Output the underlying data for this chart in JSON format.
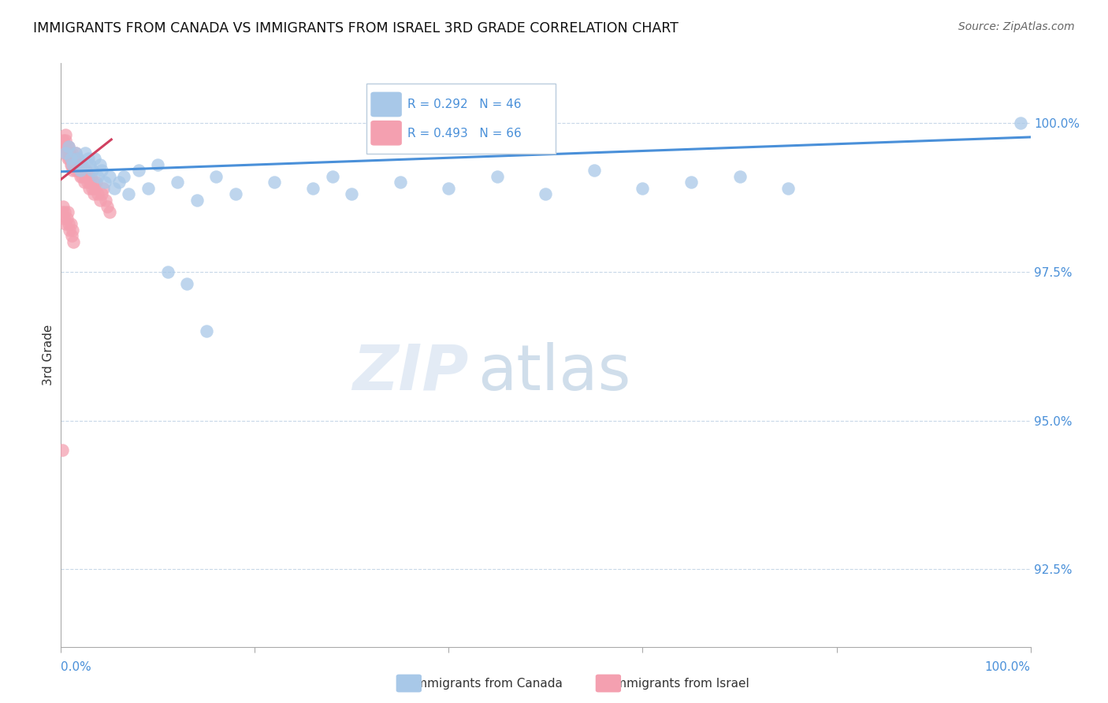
{
  "title": "IMMIGRANTS FROM CANADA VS IMMIGRANTS FROM ISRAEL 3RD GRADE CORRELATION CHART",
  "source": "Source: ZipAtlas.com",
  "ylabel": "3rd Grade",
  "yticks": [
    92.5,
    95.0,
    97.5,
    100.0
  ],
  "ytick_labels": [
    "92.5%",
    "95.0%",
    "97.5%",
    "100.0%"
  ],
  "xlim": [
    0.0,
    1.0
  ],
  "ylim": [
    91.2,
    101.0
  ],
  "legend_r_canada": "R = 0.292",
  "legend_n_canada": "N = 46",
  "legend_r_israel": "R = 0.493",
  "legend_n_israel": "N = 66",
  "legend_label_canada": "Immigrants from Canada",
  "legend_label_israel": "Immigrants from Israel",
  "color_canada": "#a8c8e8",
  "color_israel": "#f4a0b0",
  "color_trendline_canada": "#4a90d9",
  "color_trendline_israel": "#d04060",
  "watermark_zip": "ZIP",
  "watermark_atlas": "atlas",
  "canada_x": [
    0.005,
    0.008,
    0.01,
    0.012,
    0.015,
    0.018,
    0.02,
    0.022,
    0.025,
    0.028,
    0.03,
    0.032,
    0.035,
    0.038,
    0.04,
    0.042,
    0.045,
    0.05,
    0.055,
    0.06,
    0.065,
    0.07,
    0.08,
    0.09,
    0.1,
    0.12,
    0.14,
    0.16,
    0.18,
    0.22,
    0.26,
    0.28,
    0.3,
    0.35,
    0.4,
    0.45,
    0.5,
    0.55,
    0.6,
    0.65,
    0.7,
    0.75,
    0.99,
    0.11,
    0.13,
    0.15
  ],
  "canada_y": [
    99.5,
    99.6,
    99.4,
    99.3,
    99.5,
    99.4,
    99.2,
    99.3,
    99.5,
    99.4,
    99.3,
    99.2,
    99.4,
    99.1,
    99.3,
    99.2,
    99.0,
    99.1,
    98.9,
    99.0,
    99.1,
    98.8,
    99.2,
    98.9,
    99.3,
    99.0,
    98.7,
    99.1,
    98.8,
    99.0,
    98.9,
    99.1,
    98.8,
    99.0,
    98.9,
    99.1,
    98.8,
    99.2,
    98.9,
    99.0,
    99.1,
    98.9,
    100.0,
    97.5,
    97.3,
    96.5
  ],
  "israel_x": [
    0.001,
    0.002,
    0.003,
    0.004,
    0.005,
    0.005,
    0.006,
    0.007,
    0.007,
    0.008,
    0.008,
    0.009,
    0.009,
    0.01,
    0.01,
    0.011,
    0.011,
    0.012,
    0.012,
    0.013,
    0.014,
    0.015,
    0.015,
    0.016,
    0.017,
    0.018,
    0.019,
    0.02,
    0.02,
    0.021,
    0.022,
    0.023,
    0.024,
    0.025,
    0.026,
    0.027,
    0.028,
    0.029,
    0.03,
    0.031,
    0.032,
    0.033,
    0.034,
    0.035,
    0.036,
    0.038,
    0.04,
    0.042,
    0.044,
    0.046,
    0.048,
    0.05,
    0.001,
    0.002,
    0.003,
    0.004,
    0.005,
    0.006,
    0.007,
    0.008,
    0.009,
    0.01,
    0.011,
    0.012,
    0.013,
    0.001
  ],
  "israel_y": [
    99.6,
    99.7,
    99.5,
    99.6,
    99.8,
    99.7,
    99.5,
    99.6,
    99.4,
    99.5,
    99.6,
    99.4,
    99.5,
    99.3,
    99.4,
    99.5,
    99.3,
    99.4,
    99.2,
    99.3,
    99.4,
    99.5,
    99.2,
    99.3,
    99.4,
    99.2,
    99.3,
    99.1,
    99.2,
    99.3,
    99.1,
    99.2,
    99.0,
    99.1,
    99.2,
    99.0,
    99.1,
    98.9,
    99.0,
    99.1,
    98.9,
    99.0,
    98.8,
    98.9,
    99.0,
    98.8,
    98.7,
    98.8,
    98.9,
    98.7,
    98.6,
    98.5,
    98.5,
    98.6,
    98.4,
    98.5,
    98.3,
    98.4,
    98.5,
    98.3,
    98.2,
    98.3,
    98.1,
    98.2,
    98.0,
    94.5
  ],
  "canada_trendline_x": [
    0.0,
    1.0
  ],
  "canada_trendline_y": [
    99.18,
    99.76
  ],
  "israel_trendline_x": [
    0.0,
    0.052
  ],
  "israel_trendline_y": [
    99.05,
    99.72
  ]
}
